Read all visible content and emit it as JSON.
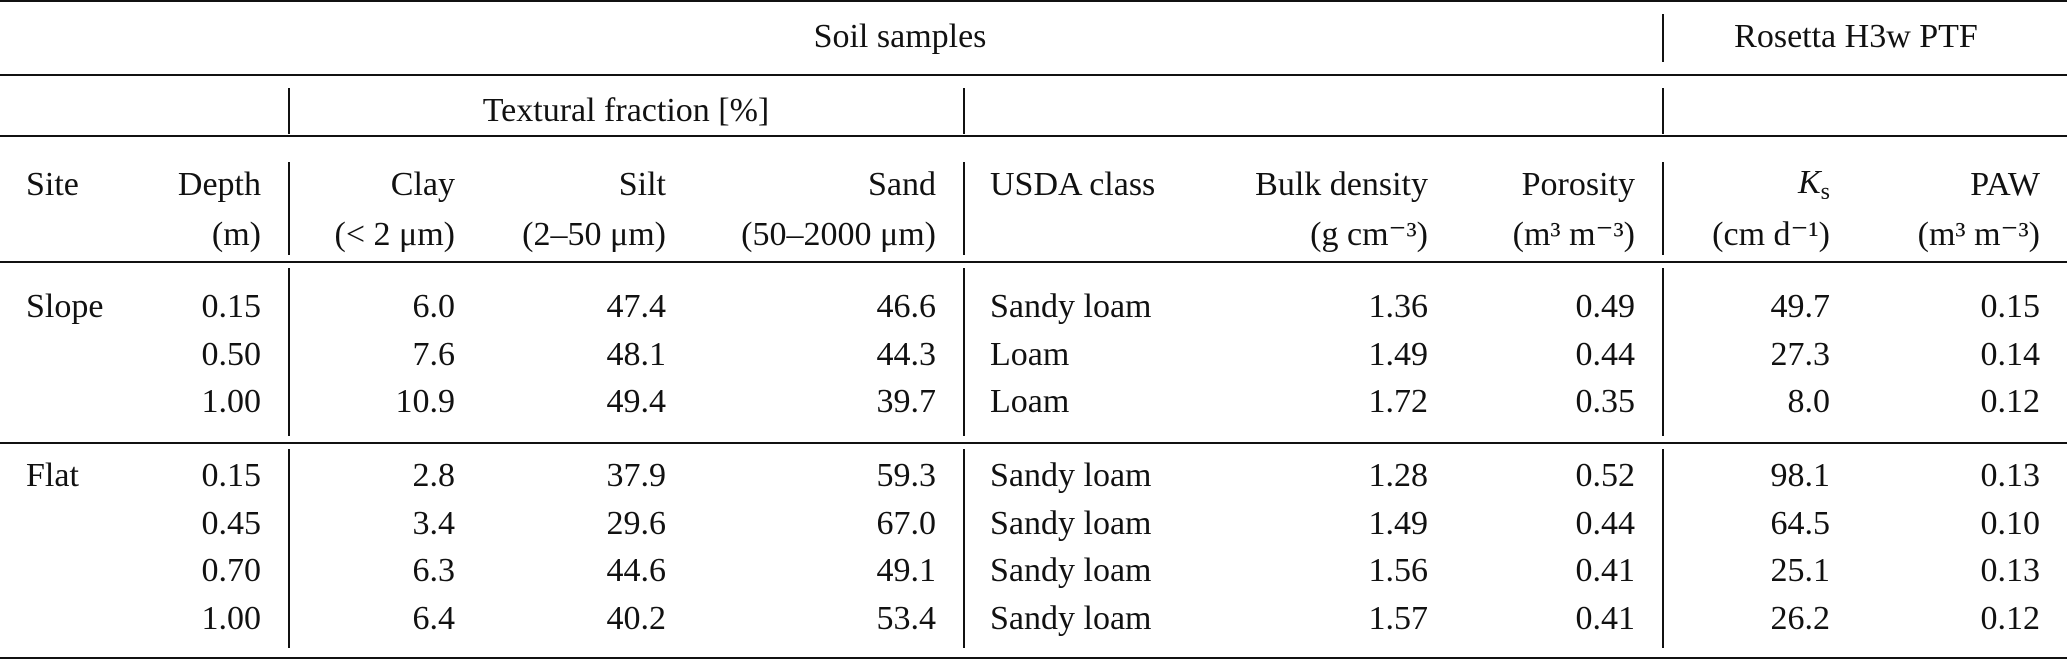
{
  "header_groups": [
    {
      "label": "Soil samples"
    },
    {
      "label": "Rosetta H3w PTF"
    }
  ],
  "subgroup": "Textural fraction [%]",
  "columns": [
    {
      "label": "Site"
    },
    {
      "label": "Depth",
      "unit": "(m)"
    },
    {
      "label": "Clay",
      "unit": "(< 2 μm)"
    },
    {
      "label": "Silt",
      "unit": "(2–50 μm)"
    },
    {
      "label": "Sand",
      "unit": "(50–2000 μm)"
    },
    {
      "label": "USDA class"
    },
    {
      "label": "Bulk density",
      "unit": "(g cm⁻³)"
    },
    {
      "label": "Porosity",
      "unit": "(m³ m⁻³)"
    },
    {
      "label": "K",
      "sub": "s",
      "unit": "(cm d⁻¹)"
    },
    {
      "label": "PAW",
      "unit": "(m³ m⁻³)"
    }
  ],
  "groups": [
    {
      "site": "Slope",
      "rows": [
        [
          "0.15",
          "6.0",
          "47.4",
          "46.6",
          "Sandy loam",
          "1.36",
          "0.49",
          "49.7",
          "0.15"
        ],
        [
          "0.50",
          "7.6",
          "48.1",
          "44.3",
          "Loam",
          "1.49",
          "0.44",
          "27.3",
          "0.14"
        ],
        [
          "1.00",
          "10.9",
          "49.4",
          "39.7",
          "Loam",
          "1.72",
          "0.35",
          "8.0",
          "0.12"
        ]
      ]
    },
    {
      "site": "Flat",
      "rows": [
        [
          "0.15",
          "2.8",
          "37.9",
          "59.3",
          "Sandy loam",
          "1.28",
          "0.52",
          "98.1",
          "0.13"
        ],
        [
          "0.45",
          "3.4",
          "29.6",
          "67.0",
          "Sandy loam",
          "1.49",
          "0.44",
          "64.5",
          "0.10"
        ],
        [
          "0.70",
          "6.3",
          "44.6",
          "49.1",
          "Sandy loam",
          "1.56",
          "0.41",
          "25.1",
          "0.13"
        ],
        [
          "1.00",
          "6.4",
          "40.2",
          "53.4",
          "Sandy loam",
          "1.57",
          "0.41",
          "26.2",
          "0.12"
        ]
      ]
    }
  ]
}
